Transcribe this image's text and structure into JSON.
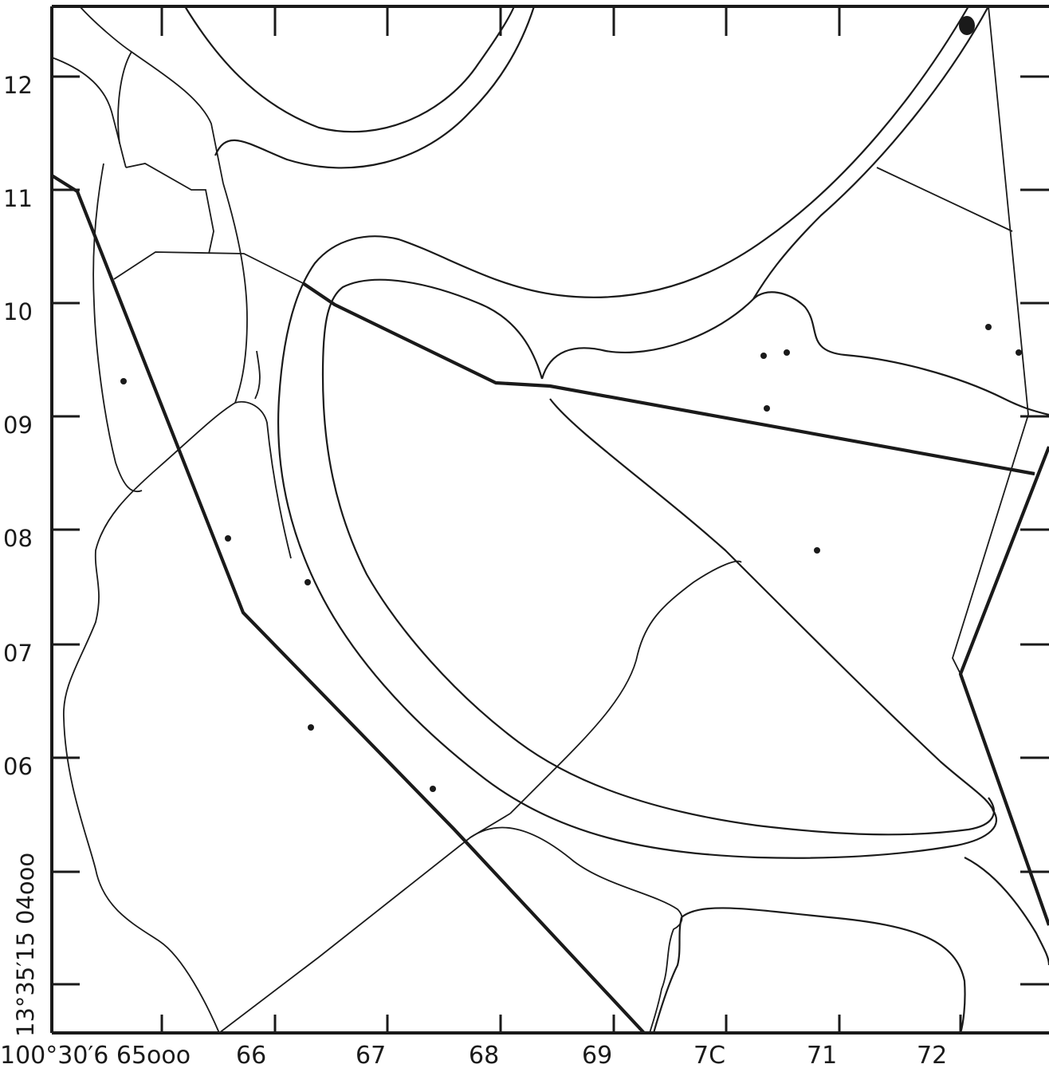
{
  "map": {
    "x_axis": {
      "origin_label": "100°30′6 65ooo",
      "ticks": [
        "66",
        "67",
        "68",
        "69",
        "7C",
        "71",
        "72"
      ]
    },
    "y_axis": {
      "origin_label": "13°35′15 04ooo",
      "ticks": [
        "12",
        "11",
        "10",
        "09",
        "08",
        "07",
        "06"
      ]
    },
    "colors": {
      "ink": "#1a1a1a",
      "paper": "#ffffff"
    }
  }
}
